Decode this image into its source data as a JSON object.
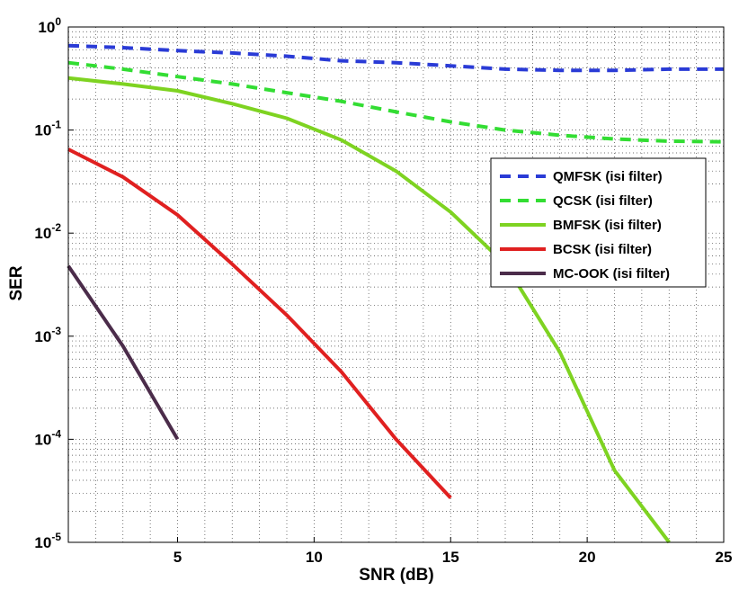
{
  "chart_data": {
    "type": "line",
    "title": "",
    "xlabel": "SNR (dB)",
    "ylabel": "SER",
    "xlim": [
      1,
      25
    ],
    "ylim": [
      1e-05,
      1
    ],
    "yscale": "log",
    "grid": true,
    "grid_style": "dotted",
    "legend_position": "right",
    "x_ticks": [
      5,
      10,
      15,
      20,
      25
    ],
    "x_tick_labels": [
      "5",
      "10",
      "15",
      "20",
      "25"
    ],
    "y_ticks": [
      1,
      0.1,
      0.01,
      0.001,
      0.0001,
      1e-05
    ],
    "y_tick_bases": [
      "10",
      "10",
      "10",
      "10",
      "10",
      "10"
    ],
    "y_tick_exps": [
      "0",
      "-1",
      "-2",
      "-3",
      "-4",
      "-5"
    ],
    "series": [
      {
        "name": "QMFSK (isi filter)",
        "color": "#2a3bd6",
        "dash": "dashed",
        "x": [
          1,
          3,
          5,
          7,
          9,
          11,
          13,
          15,
          17,
          19,
          21,
          23,
          25
        ],
        "y": [
          0.66,
          0.63,
          0.59,
          0.56,
          0.52,
          0.47,
          0.45,
          0.42,
          0.39,
          0.38,
          0.38,
          0.39,
          0.39
        ]
      },
      {
        "name": "QCSK (isi filter)",
        "color": "#33dd33",
        "dash": "dashed",
        "x": [
          1,
          3,
          5,
          7,
          9,
          11,
          13,
          15,
          17,
          19,
          21,
          23,
          25
        ],
        "y": [
          0.45,
          0.39,
          0.33,
          0.28,
          0.23,
          0.19,
          0.15,
          0.12,
          0.1,
          0.089,
          0.082,
          0.078,
          0.077
        ]
      },
      {
        "name": "BMFSK (isi filter)",
        "color": "#7ed321",
        "dash": "solid",
        "x": [
          1,
          3,
          5,
          7,
          9,
          11,
          13,
          15,
          17,
          19,
          21,
          23
        ],
        "y": [
          0.32,
          0.28,
          0.24,
          0.18,
          0.13,
          0.08,
          0.04,
          0.016,
          0.005,
          0.0007,
          5e-05,
          1e-05
        ]
      },
      {
        "name": "BCSK (isi filter)",
        "color": "#e02020",
        "dash": "solid",
        "x": [
          1,
          3,
          5,
          7,
          9,
          11,
          13,
          15
        ],
        "y": [
          0.065,
          0.035,
          0.015,
          0.005,
          0.0016,
          0.00045,
          0.0001,
          2.7e-05
        ]
      },
      {
        "name": "MC-OOK (isi filter)",
        "color": "#4b2c4a",
        "dash": "solid",
        "x": [
          1,
          3,
          5
        ],
        "y": [
          0.0048,
          0.0008,
          0.0001
        ]
      }
    ]
  }
}
